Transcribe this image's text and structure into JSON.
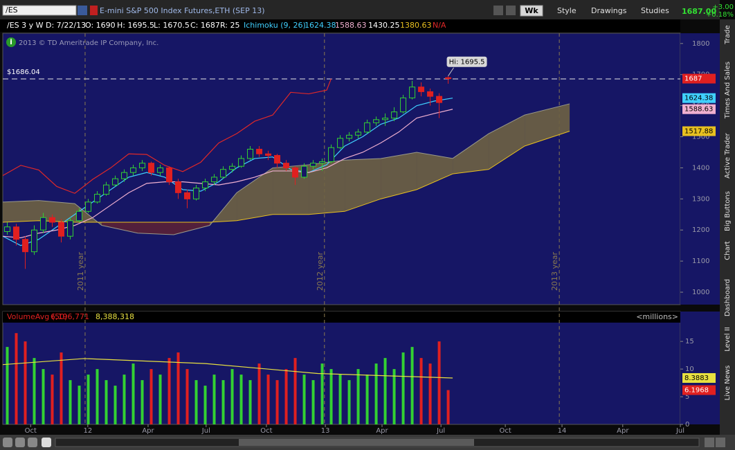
{
  "toolbar": {
    "symbol": "/ES",
    "description": "E-mini S&P 500 Index Futures,ETH (SEP 13)",
    "period": "Wk",
    "style": "Style",
    "drawings": "Drawings",
    "studies": "Studies",
    "last": "1687.00",
    "change": "+3.00",
    "change_pct": "+0.18%"
  },
  "info_bar": {
    "symbol_period": "/ES 3 y W",
    "date": "D: 7/22/13",
    "open": "O: 1690",
    "high": "H: 1695.5",
    "low": "L: 1670.5",
    "close": "C: 1687",
    "range": "R: 25",
    "study": "Ichimoku (9, 26)",
    "chikou": "N/A"
  },
  "sidebar_tabs": [
    "Trade",
    "Times And Sales",
    "Active Trader",
    "Big Buttons",
    "Chart",
    "Dashboard",
    "Level II",
    "Live News"
  ],
  "chart_data": [
    {
      "type": "candlestick",
      "copyright": "2013 © TD Ameritrade IP Company, Inc.",
      "xlim": [
        0,
        150.6
      ],
      "ylim": [
        960,
        1833
      ],
      "yticks": [
        1000,
        1100,
        1200,
        1300,
        1400,
        1500,
        1600,
        1700,
        1800
      ],
      "up_color": "#33d133",
      "down_color": "#e02020",
      "x": [
        1,
        3,
        5,
        7,
        9,
        11,
        13,
        15,
        17,
        19,
        21,
        23,
        25,
        27,
        29,
        31,
        33,
        35,
        37,
        39,
        41,
        43,
        45,
        47,
        49,
        51,
        53,
        55,
        57,
        59,
        61,
        63,
        65,
        67,
        69,
        71,
        73,
        75,
        77,
        79,
        81,
        83,
        85,
        87,
        89,
        91,
        93,
        95,
        97,
        99
      ],
      "open": [
        1195,
        1210,
        1170,
        1130,
        1200,
        1240,
        1225,
        1180,
        1230,
        1260,
        1290,
        1315,
        1345,
        1365,
        1385,
        1400,
        1415,
        1385,
        1400,
        1355,
        1320,
        1300,
        1335,
        1355,
        1370,
        1395,
        1405,
        1430,
        1460,
        1445,
        1440,
        1415,
        1400,
        1370,
        1405,
        1415,
        1420,
        1465,
        1495,
        1505,
        1515,
        1545,
        1555,
        1560,
        1580,
        1625,
        1660,
        1645,
        1630,
        1690
      ],
      "high": [
        1225,
        1220,
        1180,
        1215,
        1255,
        1250,
        1235,
        1240,
        1270,
        1300,
        1325,
        1355,
        1375,
        1395,
        1410,
        1425,
        1420,
        1410,
        1405,
        1365,
        1330,
        1345,
        1365,
        1380,
        1405,
        1415,
        1440,
        1470,
        1470,
        1455,
        1445,
        1425,
        1405,
        1415,
        1425,
        1430,
        1475,
        1505,
        1515,
        1525,
        1555,
        1565,
        1575,
        1595,
        1635,
        1680,
        1675,
        1655,
        1640,
        1695.5
      ],
      "low": [
        1185,
        1150,
        1075,
        1120,
        1190,
        1210,
        1160,
        1170,
        1225,
        1255,
        1285,
        1310,
        1340,
        1355,
        1375,
        1390,
        1375,
        1375,
        1345,
        1300,
        1270,
        1295,
        1325,
        1345,
        1365,
        1385,
        1400,
        1425,
        1435,
        1425,
        1400,
        1390,
        1345,
        1365,
        1395,
        1390,
        1415,
        1460,
        1485,
        1495,
        1510,
        1535,
        1535,
        1550,
        1575,
        1620,
        1630,
        1600,
        1560,
        1670.5
      ],
      "close": [
        1210,
        1170,
        1130,
        1200,
        1240,
        1225,
        1180,
        1230,
        1260,
        1290,
        1315,
        1345,
        1365,
        1385,
        1400,
        1415,
        1385,
        1400,
        1355,
        1320,
        1300,
        1335,
        1355,
        1370,
        1395,
        1405,
        1430,
        1460,
        1445,
        1440,
        1415,
        1400,
        1370,
        1405,
        1415,
        1420,
        1465,
        1495,
        1505,
        1515,
        1545,
        1555,
        1560,
        1580,
        1625,
        1660,
        1645,
        1630,
        1610,
        1687
      ],
      "series": [
        {
          "color": "#40d0ff",
          "x": [
            0,
            4,
            8,
            12,
            16,
            20,
            24,
            28,
            32,
            36,
            40,
            44,
            48,
            52,
            56,
            60,
            64,
            68,
            72,
            76,
            80,
            84,
            88,
            92,
            96,
            100
          ],
          "values": [
            1180,
            1150,
            1170,
            1210,
            1250,
            1290,
            1330,
            1370,
            1385,
            1370,
            1330,
            1325,
            1355,
            1400,
            1430,
            1435,
            1395,
            1385,
            1410,
            1470,
            1500,
            1540,
            1560,
            1600,
            1615,
            1624.38
          ]
        },
        {
          "color": "#f0b0d0",
          "x": [
            0,
            4,
            8,
            12,
            16,
            20,
            24,
            28,
            32,
            36,
            40,
            44,
            48,
            52,
            56,
            60,
            64,
            68,
            72,
            76,
            80,
            84,
            88,
            92,
            96,
            100
          ],
          "values": [
            1180,
            1175,
            1190,
            1200,
            1215,
            1240,
            1280,
            1320,
            1350,
            1355,
            1355,
            1350,
            1345,
            1355,
            1370,
            1390,
            1390,
            1385,
            1400,
            1430,
            1450,
            1480,
            1515,
            1560,
            1575,
            1588.63
          ]
        },
        {
          "color": "#e02828",
          "x": [
            0,
            4,
            8,
            12,
            16,
            20,
            24,
            28,
            32,
            36,
            40,
            44,
            48,
            52,
            56,
            60,
            64,
            68,
            72,
            73
          ],
          "values": [
            1375,
            1408,
            1393,
            1340,
            1318,
            1363,
            1400,
            1445,
            1443,
            1408,
            1388,
            1418,
            1480,
            1510,
            1550,
            1570,
            1643,
            1638,
            1650,
            1687
          ]
        }
      ],
      "cloud": {
        "x": [
          0,
          8,
          16,
          22,
          30,
          38,
          46,
          52,
          60,
          68,
          76,
          84,
          92,
          100,
          108,
          116,
          126
        ],
        "span_a": [
          1290,
          1295,
          1285,
          1215,
          1190,
          1185,
          1215,
          1320,
          1400,
          1410,
          1425,
          1430,
          1450,
          1430.25,
          1510,
          1570,
          1606
        ],
        "span_b": [
          1225,
          1230,
          1225,
          1225,
          1225,
          1225,
          1225,
          1230,
          1250,
          1250,
          1260,
          1300,
          1330,
          1380.63,
          1395,
          1470,
          1517.88
        ],
        "up_color": "#6e6242",
        "down_color": "#5a2036",
        "a_color": "#9a9a8a",
        "b_color": "#e8c020"
      },
      "price_line": {
        "value": 1686.04,
        "label": "$1686.04"
      },
      "high_marker": {
        "value": 1695.5,
        "label": "Hi: 1695.5"
      },
      "year_markers": [
        {
          "value": 18.3,
          "label": "2011 year"
        },
        {
          "value": 71.5,
          "label": "2012 year"
        },
        {
          "value": 123.7,
          "label": "2013 year"
        }
      ]
    },
    {
      "type": "bar",
      "title": "VolumeAvg (50)",
      "legend_values": [
        "6,196,771",
        "8,388,318"
      ],
      "unit_label": "<millions>",
      "xlim": [
        0,
        150.6
      ],
      "ylim": [
        0,
        20.4
      ],
      "yticks": [
        0,
        5,
        10,
        15
      ],
      "xticks": [
        {
          "value": 6.2,
          "label": "Oct"
        },
        {
          "value": 18.9,
          "label": "12"
        },
        {
          "value": 32.3,
          "label": "Apr"
        },
        {
          "value": 45.2,
          "label": "Jul"
        },
        {
          "value": 58.6,
          "label": "Oct"
        },
        {
          "value": 71.7,
          "label": "13"
        },
        {
          "value": 84.3,
          "label": "Apr"
        },
        {
          "value": 97.4,
          "label": "Jul"
        },
        {
          "value": 111.7,
          "label": "Oct"
        },
        {
          "value": 124.3,
          "label": "14"
        },
        {
          "value": 137.8,
          "label": "Apr"
        },
        {
          "value": 150.6,
          "label": "Jul"
        }
      ],
      "x": [
        1,
        3,
        5,
        7,
        9,
        11,
        13,
        15,
        17,
        19,
        21,
        23,
        25,
        27,
        29,
        31,
        33,
        35,
        37,
        39,
        41,
        43,
        45,
        47,
        49,
        51,
        53,
        55,
        57,
        59,
        61,
        63,
        65,
        67,
        69,
        71,
        73,
        75,
        77,
        79,
        81,
        83,
        85,
        87,
        89,
        91,
        93,
        95,
        97,
        99
      ],
      "values": [
        14,
        16.5,
        15,
        12,
        10,
        9,
        13,
        8,
        7,
        9,
        10,
        8,
        7,
        9,
        11,
        8,
        10,
        9,
        12,
        13,
        10,
        8,
        7,
        9,
        8,
        10,
        9,
        8,
        11,
        9,
        8,
        10,
        12,
        9,
        8,
        11,
        10,
        9,
        8,
        10,
        9,
        11,
        12,
        10,
        13,
        14,
        12,
        11,
        15,
        6.1968
      ],
      "up_color": "#33d133",
      "down_color": "#e02020",
      "avg": {
        "color": "#e8e040",
        "x": [
          0,
          18,
          45,
          70,
          100
        ],
        "values": [
          10.8,
          11.9,
          11,
          9.2,
          8.3883
        ]
      }
    }
  ]
}
